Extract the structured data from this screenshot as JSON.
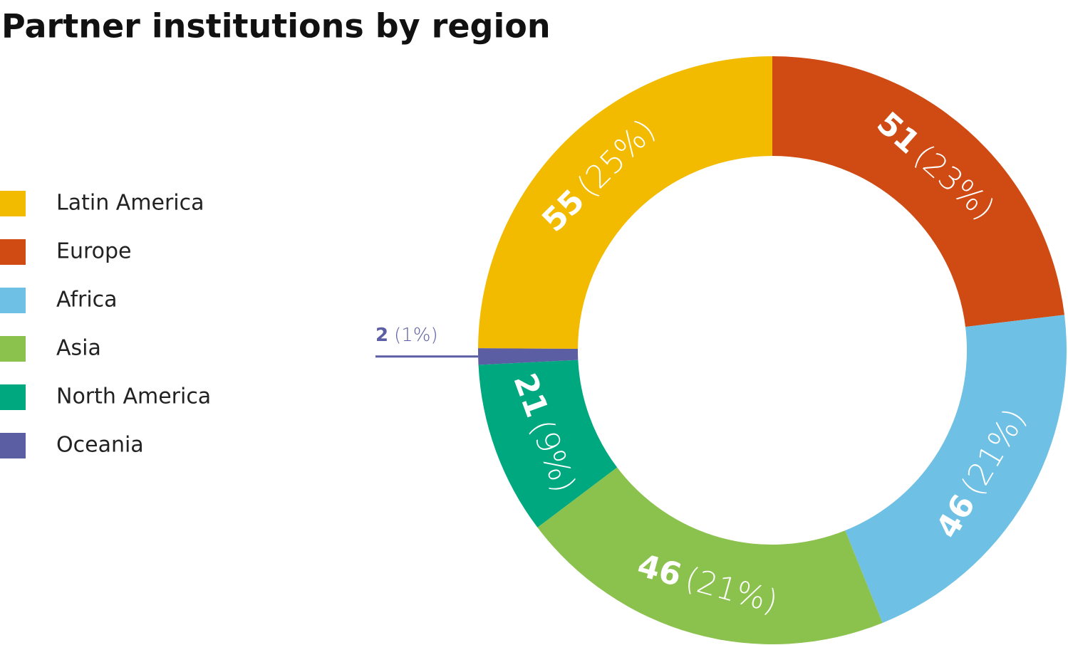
{
  "chart_data": {
    "type": "donut",
    "title": "Partner institutions by region",
    "categories": [
      "Latin America",
      "Europe",
      "Africa",
      "Asia",
      "North America",
      "Oceania"
    ],
    "values": [
      55,
      51,
      46,
      46,
      21,
      2
    ],
    "share_labels": [
      "(25%)",
      "(23%)",
      "(21%)",
      "(21%)",
      "(9%)",
      "(1%)"
    ],
    "colors": [
      "#f2bb00",
      "#d04a13",
      "#6ec0e4",
      "#8bc14d",
      "#00a880",
      "#5b5ea2"
    ],
    "legend": "left"
  }
}
